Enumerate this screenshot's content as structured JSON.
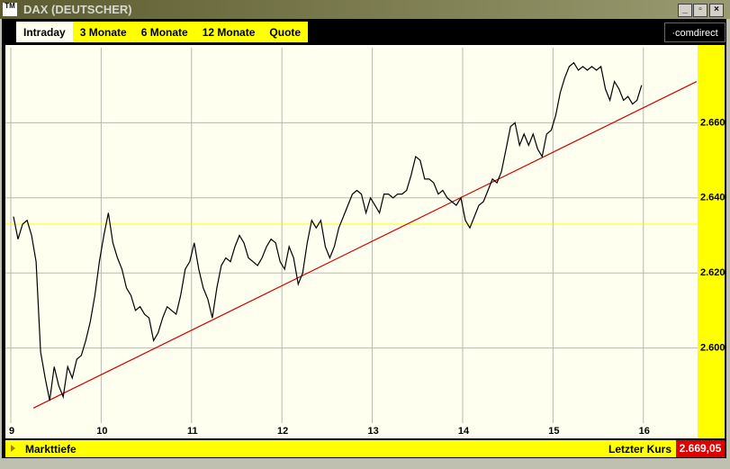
{
  "window": {
    "title": "DAX (DEUTSCHER)",
    "icon": "TM"
  },
  "tabs": [
    "Intraday",
    "3 Monate",
    "6 Monate",
    "12 Monate",
    "Quote"
  ],
  "brand": "·comdirect",
  "footer": {
    "left": "Markttiefe",
    "right_label": "Letzter Kurs",
    "right_value": "2.669,05"
  },
  "chart_data": {
    "type": "line",
    "x": [
      9.03,
      9.08,
      9.13,
      9.18,
      9.23,
      9.28,
      9.33,
      9.38,
      9.43,
      9.48,
      9.53,
      9.58,
      9.63,
      9.68,
      9.73,
      9.78,
      9.83,
      9.88,
      9.93,
      9.98,
      10.03,
      10.08,
      10.13,
      10.18,
      10.23,
      10.28,
      10.33,
      10.38,
      10.43,
      10.48,
      10.53,
      10.58,
      10.63,
      10.68,
      10.73,
      10.78,
      10.83,
      10.88,
      10.93,
      10.98,
      11.03,
      11.08,
      11.13,
      11.18,
      11.23,
      11.28,
      11.33,
      11.38,
      11.43,
      11.48,
      11.53,
      11.58,
      11.63,
      11.68,
      11.73,
      11.78,
      11.83,
      11.88,
      11.93,
      11.98,
      12.03,
      12.08,
      12.13,
      12.18,
      12.23,
      12.28,
      12.33,
      12.38,
      12.43,
      12.48,
      12.53,
      12.58,
      12.63,
      12.68,
      12.73,
      12.78,
      12.83,
      12.88,
      12.93,
      12.98,
      13.03,
      13.08,
      13.13,
      13.18,
      13.23,
      13.28,
      13.33,
      13.38,
      13.43,
      13.48,
      13.53,
      13.58,
      13.63,
      13.68,
      13.73,
      13.78,
      13.83,
      13.88,
      13.93,
      13.98,
      14.03,
      14.08,
      14.13,
      14.18,
      14.23,
      14.28,
      14.33,
      14.38,
      14.43,
      14.48,
      14.53,
      14.58,
      14.63,
      14.68,
      14.73,
      14.78,
      14.83,
      14.88,
      14.93,
      14.98,
      15.03,
      15.08,
      15.13,
      15.18,
      15.23,
      15.28,
      15.33,
      15.38,
      15.43,
      15.48,
      15.53,
      15.58,
      15.63,
      15.68,
      15.73,
      15.78,
      15.83,
      15.88,
      15.93,
      15.98
    ],
    "series": [
      {
        "color": "#000000",
        "values": [
          2635,
          2629,
          2633,
          2634,
          2630,
          2623,
          2599,
          2592,
          2586,
          2595,
          2590,
          2587,
          2595,
          2592,
          2597,
          2598,
          2602,
          2607,
          2614,
          2623,
          2630,
          2636,
          2628,
          2624,
          2621,
          2616,
          2614,
          2610,
          2611,
          2609,
          2608,
          2602,
          2604,
          2608,
          2611,
          2610,
          2609,
          2614,
          2621,
          2623,
          2628,
          2621,
          2616,
          2613,
          2608,
          2616,
          2622,
          2624,
          2623,
          2627,
          2630,
          2628,
          2624,
          2623,
          2622,
          2624,
          2627,
          2629,
          2628,
          2623,
          2621,
          2627,
          2624,
          2617,
          2620,
          2628,
          2634,
          2632,
          2634,
          2627,
          2624,
          2627,
          2632,
          2635,
          2638,
          2641,
          2642,
          2641,
          2636,
          2640,
          2638,
          2636,
          2641,
          2641,
          2640,
          2641,
          2641,
          2642,
          2646,
          2651,
          2650,
          2645,
          2645,
          2644,
          2641,
          2642,
          2640,
          2639,
          2638,
          2640,
          2634,
          2632,
          2635,
          2638,
          2639,
          2642,
          2645,
          2644,
          2647,
          2653,
          2659,
          2660,
          2654,
          2657,
          2654,
          2657,
          2653,
          2651,
          2657,
          2658,
          2662,
          2668,
          2672,
          2675,
          2676,
          2674,
          2675,
          2674,
          2675,
          2674,
          2675,
          2669,
          2666,
          2671,
          2669,
          2666,
          2667,
          2665,
          2666,
          2670
        ]
      }
    ],
    "trendline": {
      "x": [
        9.25,
        16.59
      ],
      "values": [
        2584,
        2671
      ],
      "color": "#d00000"
    },
    "reference_line": {
      "value": 2633,
      "color": "#ffff00"
    },
    "xlim": [
      9,
      16.6
    ],
    "xticks": [
      9,
      10,
      11,
      12,
      13,
      14,
      15,
      16
    ],
    "ylim": [
      2580,
      2680
    ],
    "yticks": [
      {
        "value": 2600,
        "label": "2.600"
      },
      {
        "value": 2620,
        "label": "2.620"
      },
      {
        "value": 2640,
        "label": "2.640"
      },
      {
        "value": 2660,
        "label": "2.660"
      }
    ],
    "grid": true,
    "background": "#fffff0"
  }
}
